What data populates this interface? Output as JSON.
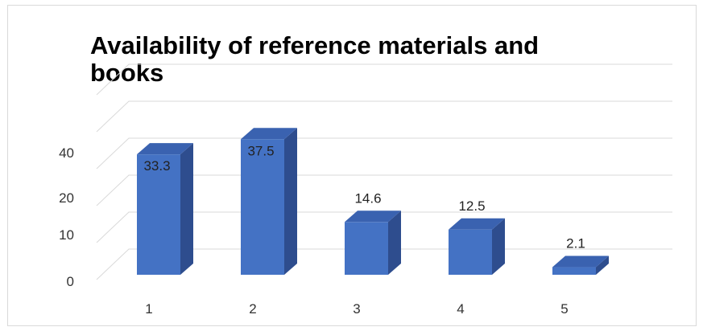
{
  "chart_data": {
    "type": "bar",
    "title": "Availability of reference materials and books",
    "categories": [
      "1",
      "2",
      "3",
      "4",
      "5"
    ],
    "values": [
      33.3,
      37.5,
      14.6,
      12.5,
      2.1
    ],
    "data_labels": [
      "33.3",
      "37.5",
      "14.6",
      "12.5",
      "2.1"
    ],
    "y_tick_labels": [
      "0",
      "10",
      "20",
      "40"
    ],
    "xlabel": "",
    "ylabel": "",
    "grid": true,
    "legend": "none",
    "style": "3d-column",
    "colors": {
      "front": "#4472c4",
      "side": "#2e4d8e",
      "top": "#3a62b0",
      "grid": "#d9d9d9"
    }
  }
}
